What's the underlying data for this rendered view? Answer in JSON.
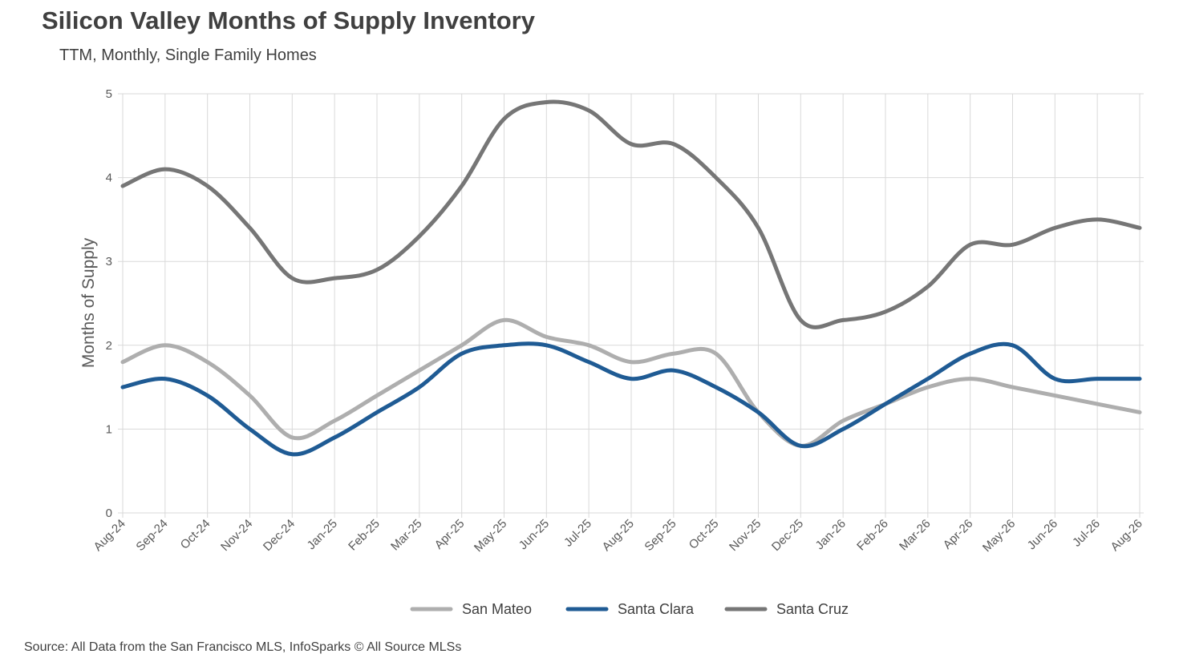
{
  "colors": {
    "San Mateo": "#aeaeae",
    "Santa Clara": "#1f5b94",
    "Santa Cruz": "#767676",
    "grid": "#d9d9d9"
  },
  "chart_data": {
    "type": "line",
    "title": "Silicon Valley Months of Supply Inventory",
    "subtitle": "TTM, Monthly, Single Family Homes",
    "source": "Source: All Data from the San Francisco MLS, InfoSparks © All Source MLSs",
    "xlabel": "",
    "ylabel": "Months of Supply",
    "ylim": [
      0,
      5
    ],
    "yticks": [
      0,
      1,
      2,
      3,
      4,
      5
    ],
    "grid": true,
    "legend_position": "bottom",
    "categories": [
      "Aug-24",
      "Sep-24",
      "Oct-24",
      "Nov-24",
      "Dec-24",
      "Jan-25",
      "Feb-25",
      "Mar-25",
      "Apr-25",
      "May-25",
      "Jun-25",
      "Jul-25",
      "Aug-25",
      "Sep-25",
      "Oct-25",
      "Nov-25",
      "Dec-25",
      "Jan-26",
      "Feb-26",
      "Mar-26",
      "Apr-26",
      "May-26",
      "Jun-26",
      "Jul-26",
      "Aug-26"
    ],
    "series": [
      {
        "name": "San Mateo",
        "values": [
          1.8,
          2.0,
          1.8,
          1.4,
          0.9,
          1.1,
          1.4,
          1.7,
          2.0,
          2.3,
          2.1,
          2.0,
          1.8,
          1.9,
          1.9,
          1.2,
          0.8,
          1.1,
          1.3,
          1.5,
          1.6,
          1.5,
          1.4,
          1.3,
          1.2
        ]
      },
      {
        "name": "Santa Clara",
        "values": [
          1.5,
          1.6,
          1.4,
          1.0,
          0.7,
          0.9,
          1.2,
          1.5,
          1.9,
          2.0,
          2.0,
          1.8,
          1.6,
          1.7,
          1.5,
          1.2,
          0.8,
          1.0,
          1.3,
          1.6,
          1.9,
          2.0,
          1.6,
          1.6,
          1.6
        ]
      },
      {
        "name": "Santa Cruz",
        "values": [
          3.9,
          4.1,
          3.9,
          3.4,
          2.8,
          2.8,
          2.9,
          3.3,
          3.9,
          4.7,
          4.9,
          4.8,
          4.4,
          4.4,
          4.0,
          3.4,
          2.3,
          2.3,
          2.4,
          2.7,
          3.2,
          3.2,
          3.4,
          3.5,
          3.4
        ]
      }
    ]
  }
}
